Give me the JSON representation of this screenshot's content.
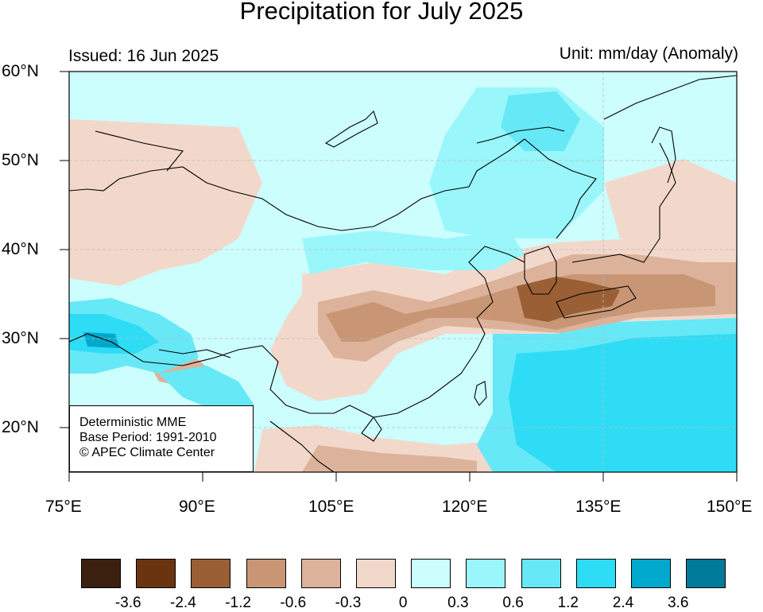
{
  "title": "Precipitation for July 2025",
  "issued": "Issued: 16 Jun 2025",
  "unit": "Unit: mm/day (Anomaly)",
  "lat_labels": [
    "60°N",
    "50°N",
    "40°N",
    "30°N",
    "20°N"
  ],
  "lon_labels": [
    "75°E",
    "90°E",
    "105°E",
    "120°E",
    "135°E",
    "150°E"
  ],
  "map_extent": {
    "lon_min": 75,
    "lon_max": 150,
    "lat_min": 15,
    "lat_max": 60
  },
  "info": {
    "line1": "Deterministic MME",
    "line2": "Base Period: 1991-2010",
    "line3": "© APEC Climate Center"
  },
  "colorbar": {
    "colors": [
      "#3b2010",
      "#6b3410",
      "#9a5f35",
      "#c89674",
      "#dcb39a",
      "#f2d8cb",
      "#ccfefe",
      "#99f6fa",
      "#66e8f6",
      "#2edcf6",
      "#00a8cc",
      "#007a99"
    ],
    "labels": [
      "-3.6",
      "-2.4",
      "-1.2",
      "-0.6",
      "-0.3",
      "0",
      "0.3",
      "0.6",
      "1.2",
      "2.4",
      "3.6"
    ]
  }
}
